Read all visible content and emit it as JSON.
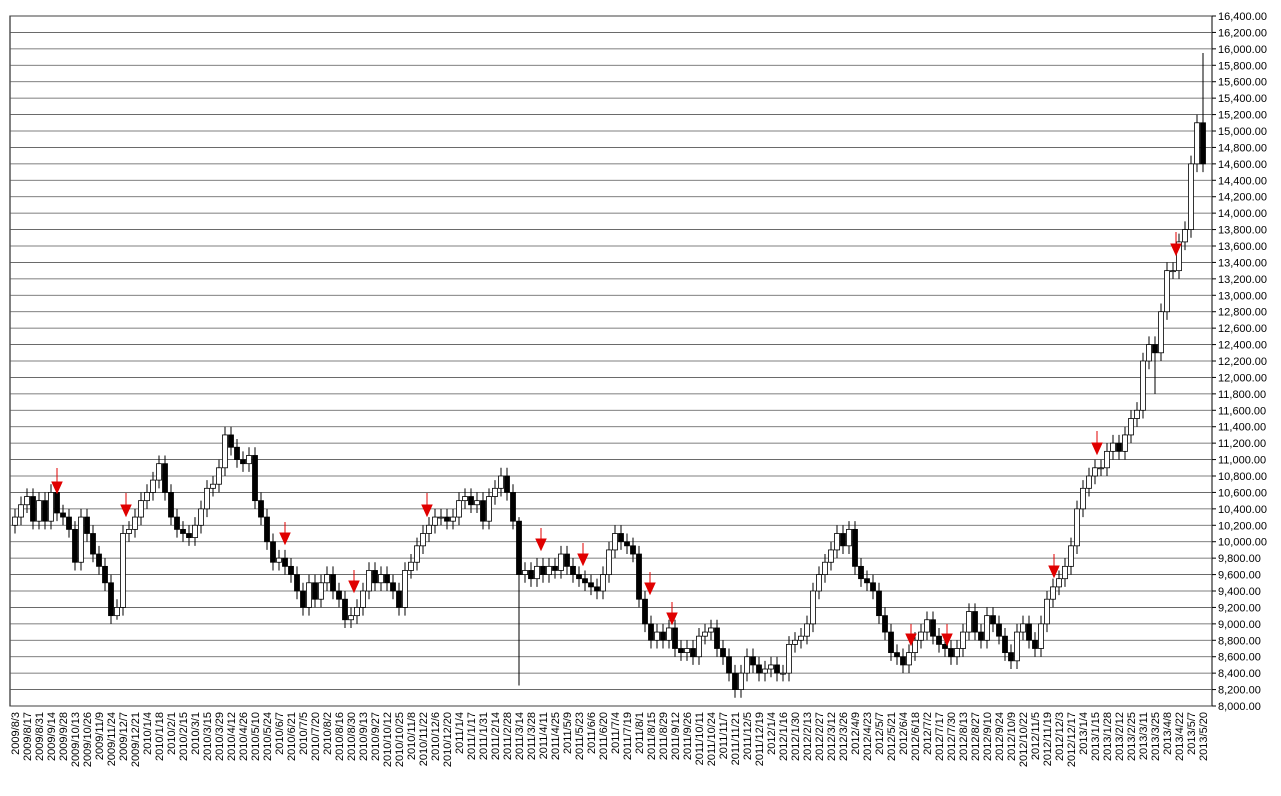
{
  "chart_data": {
    "type": "candlestick",
    "up_color": "#ffffff",
    "down_color": "#000000",
    "grid": true,
    "ylim": [
      8000,
      16400
    ],
    "yticks": [
      {
        "value": 8000,
        "label": "8,000.00"
      },
      {
        "value": 8200,
        "label": "8,200.00"
      },
      {
        "value": 8400,
        "label": "8,400.00"
      },
      {
        "value": 8600,
        "label": "8,600.00"
      },
      {
        "value": 8800,
        "label": "8,800.00"
      },
      {
        "value": 9000,
        "label": "9,000.00"
      },
      {
        "value": 9200,
        "label": "9,200.00"
      },
      {
        "value": 9400,
        "label": "9,400.00"
      },
      {
        "value": 9600,
        "label": "9,600.00"
      },
      {
        "value": 9800,
        "label": "9,800.00"
      },
      {
        "value": 10000,
        "label": "10,000.00"
      },
      {
        "value": 10200,
        "label": "10,200.00"
      },
      {
        "value": 10400,
        "label": "10,400.00"
      },
      {
        "value": 10600,
        "label": "10,600.00"
      },
      {
        "value": 10800,
        "label": "10,800.00"
      },
      {
        "value": 11000,
        "label": "11,000.00"
      },
      {
        "value": 11200,
        "label": "11,200.00"
      },
      {
        "value": 11400,
        "label": "11,400.00"
      },
      {
        "value": 11600,
        "label": "11,600.00"
      },
      {
        "value": 11800,
        "label": "11,800.00"
      },
      {
        "value": 12000,
        "label": "12,000.00"
      },
      {
        "value": 12200,
        "label": "12,200.00"
      },
      {
        "value": 12400,
        "label": "12,400.00"
      },
      {
        "value": 12600,
        "label": "12,600.00"
      },
      {
        "value": 12800,
        "label": "12,800.00"
      },
      {
        "value": 13000,
        "label": "13,000.00"
      },
      {
        "value": 13200,
        "label": "13,200.00"
      },
      {
        "value": 13400,
        "label": "13,400.00"
      },
      {
        "value": 13600,
        "label": "13,600.00"
      },
      {
        "value": 13800,
        "label": "13,800.00"
      },
      {
        "value": 14000,
        "label": "14,000.00"
      },
      {
        "value": 14200,
        "label": "14,200.00"
      },
      {
        "value": 14400,
        "label": "14,400.00"
      },
      {
        "value": 14600,
        "label": "14,600.00"
      },
      {
        "value": 14800,
        "label": "14,800.00"
      },
      {
        "value": 15000,
        "label": "15,000.00"
      },
      {
        "value": 15200,
        "label": "15,200.00"
      },
      {
        "value": 15400,
        "label": "15,400.00"
      },
      {
        "value": 15600,
        "label": "15,600.00"
      },
      {
        "value": 15800,
        "label": "15,800.00"
      },
      {
        "value": 16000,
        "label": "16,000.00"
      },
      {
        "value": 16200,
        "label": "16,200.00"
      },
      {
        "value": 16400,
        "label": "16,400.00"
      }
    ],
    "categories": [
      "2009/8/3",
      null,
      "2009/8/17",
      null,
      "2009/8/31",
      null,
      "2009/9/14",
      null,
      "2009/9/28",
      null,
      "2009/10/13",
      null,
      "2009/10/26",
      null,
      "2009/11/9",
      null,
      "2009/11/24",
      null,
      "2009/12/7",
      null,
      "2009/12/21",
      null,
      "2010/1/4",
      null,
      "2010/1/18",
      null,
      "2010/2/1",
      null,
      "2010/2/15",
      null,
      "2010/3/1",
      null,
      "2010/3/15",
      null,
      "2010/3/29",
      null,
      "2010/4/12",
      null,
      "2010/4/26",
      null,
      "2010/5/10",
      null,
      "2010/5/24",
      null,
      "2010/6/7",
      null,
      "2010/6/21",
      null,
      "2010/7/5",
      null,
      "2010/7/20",
      null,
      "2010/8/2",
      null,
      "2010/8/16",
      null,
      "2010/8/30",
      null,
      "2010/9/13",
      null,
      "2010/9/27",
      null,
      "2010/10/12",
      null,
      "2010/10/25",
      null,
      "2010/11/8",
      null,
      "2010/11/22",
      null,
      "2010/12/6",
      null,
      "2010/12/20",
      null,
      "2011/1/4",
      null,
      "2011/1/17",
      null,
      "2011/1/31",
      null,
      "2011/2/14",
      null,
      "2011/2/28",
      null,
      "2011/3/14",
      null,
      "2011/3/28",
      null,
      "2011/4/11",
      null,
      "2011/4/25",
      null,
      "2011/5/9",
      null,
      "2011/5/23",
      null,
      "2011/6/6",
      null,
      "2011/6/20",
      null,
      "2011/7/4",
      null,
      "2011/7/19",
      null,
      "2011/8/1",
      null,
      "2011/8/15",
      null,
      "2011/8/29",
      null,
      "2011/9/12",
      null,
      "2011/9/26",
      null,
      "2011/10/11",
      null,
      "2011/10/24",
      null,
      "2011/11/7",
      null,
      "2011/11/21",
      null,
      "2011/12/5",
      null,
      "2011/12/19",
      null,
      "2012/1/4",
      null,
      "2012/1/16",
      null,
      "2012/1/30",
      null,
      "2012/2/13",
      null,
      "2012/2/27",
      null,
      "2012/3/12",
      null,
      "2012/3/26",
      null,
      "2012/4/9",
      null,
      "2012/4/23",
      null,
      "2012/5/7",
      null,
      "2012/5/21",
      null,
      "2012/6/4",
      null,
      "2012/6/18",
      null,
      "2012/7/2",
      null,
      "2012/7/17",
      null,
      "2012/7/30",
      null,
      "2012/8/13",
      null,
      "2012/8/27",
      null,
      "2012/9/10",
      null,
      "2012/9/24",
      null,
      "2012/10/9",
      null,
      "2012/10/22",
      null,
      "2012/11/5",
      null,
      "2012/11/19",
      null,
      "2012/12/3",
      null,
      "2012/12/17",
      null,
      "2013/1/4",
      null,
      "2013/1/15",
      null,
      "2013/1/28",
      null,
      "2013/2/12",
      null,
      "2013/2/25",
      null,
      "2013/3/11",
      null,
      "2013/3/25",
      null,
      "2013/4/8",
      null,
      "2013/4/22",
      null,
      "2013/5/7",
      null,
      "2013/5/20"
    ],
    "open": [
      10200,
      10300,
      10450,
      10550,
      10250,
      10500,
      10250,
      10600,
      10350,
      10300,
      10150,
      9750,
      10300,
      10100,
      9850,
      9700,
      9500,
      9100,
      9200,
      10100,
      10150,
      10300,
      10500,
      10600,
      10750,
      10950,
      10600,
      10300,
      10150,
      10100,
      10050,
      10200,
      10400,
      10650,
      10700,
      10900,
      11300,
      11150,
      11000,
      10950,
      11050,
      10500,
      10300,
      10000,
      9750,
      9800,
      9700,
      9600,
      9400,
      9200,
      9500,
      9300,
      9500,
      9600,
      9400,
      9300,
      9050,
      9100,
      9200,
      9400,
      9650,
      9500,
      9600,
      9500,
      9400,
      9200,
      9650,
      9750,
      9950,
      10100,
      10200,
      10300,
      10300,
      10250,
      10300,
      10500,
      10550,
      10450,
      10500,
      10250,
      10550,
      10650,
      10800,
      10600,
      10250,
      9600,
      9650,
      9550,
      9700,
      9600,
      9700,
      9650,
      9850,
      9700,
      9600,
      9550,
      9500,
      9450,
      9400,
      9600,
      9900,
      10100,
      10000,
      9950,
      9850,
      9300,
      9000,
      8800,
      8900,
      8800,
      8950,
      8700,
      8650,
      8700,
      8600,
      8850,
      8900,
      8950,
      8700,
      8600,
      8400,
      8200,
      8400,
      8600,
      8500,
      8400,
      8450,
      8500,
      8400,
      8400,
      8750,
      8800,
      8850,
      9000,
      9400,
      9600,
      9750,
      9900,
      10100,
      9950,
      10150,
      9700,
      9550,
      9500,
      9400,
      9100,
      8900,
      8650,
      8600,
      8500,
      8650,
      8800,
      8900,
      9050,
      8850,
      8750,
      8700,
      8600,
      8700,
      8900,
      9150,
      8900,
      8800,
      9100,
      9000,
      8850,
      8650,
      8550,
      8900,
      9000,
      8800,
      8700,
      9000,
      9300,
      9450,
      9550,
      9700,
      9950,
      10400,
      10650,
      10800,
      10900,
      10900,
      11100,
      11200,
      11100,
      11300,
      11500,
      11600,
      12200,
      12400,
      12300,
      12800,
      13300,
      13300,
      13650,
      13800,
      14600,
      15100
    ],
    "high": [
      10400,
      10550,
      10650,
      10650,
      10600,
      10600,
      10700,
      10700,
      10450,
      10400,
      10250,
      10400,
      10400,
      10200,
      9950,
      9800,
      9600,
      9300,
      10200,
      10250,
      10400,
      10600,
      10700,
      10850,
      11050,
      11050,
      10700,
      10400,
      10250,
      10200,
      10300,
      10500,
      10750,
      10800,
      11000,
      11400,
      11400,
      11250,
      11100,
      11150,
      11150,
      10600,
      10400,
      10100,
      9900,
      9900,
      9800,
      9700,
      9500,
      9600,
      9600,
      9600,
      9700,
      9700,
      9500,
      9400,
      9200,
      9300,
      9500,
      9750,
      9750,
      9700,
      9700,
      9600,
      9500,
      9750,
      9850,
      10050,
      10200,
      10300,
      10400,
      10400,
      10400,
      10400,
      10600,
      10650,
      10650,
      10600,
      10600,
      10650,
      10750,
      10900,
      10900,
      10700,
      10300,
      9750,
      9750,
      9800,
      9800,
      9800,
      9800,
      9950,
      9950,
      9800,
      9700,
      9650,
      9600,
      9550,
      9700,
      10000,
      10200,
      10200,
      10100,
      10050,
      9950,
      9400,
      9100,
      9000,
      9000,
      9050,
      9050,
      8800,
      8800,
      8800,
      8950,
      9000,
      9050,
      9050,
      8800,
      8700,
      8500,
      8500,
      8700,
      8700,
      8600,
      8550,
      8600,
      8600,
      8500,
      8850,
      8900,
      8950,
      9100,
      9500,
      9700,
      9850,
      10000,
      10200,
      10200,
      10250,
      10250,
      9800,
      9650,
      9600,
      9500,
      9200,
      9000,
      8750,
      8700,
      8750,
      8900,
      9000,
      9150,
      9150,
      8950,
      8850,
      8800,
      8800,
      9000,
      9250,
      9250,
      9000,
      9200,
      9200,
      9100,
      8950,
      8750,
      9000,
      9100,
      9100,
      8900,
      9100,
      9400,
      9550,
      9650,
      9800,
      10050,
      10500,
      10750,
      10900,
      11000,
      11000,
      11200,
      11300,
      11300,
      11400,
      11600,
      11700,
      12300,
      12500,
      12500,
      12900,
      13400,
      13400,
      13750,
      13900,
      14700,
      15200,
      15950
    ],
    "low": [
      10100,
      10200,
      10350,
      10150,
      10150,
      10150,
      10150,
      10250,
      10200,
      10050,
      9650,
      9650,
      10000,
      9750,
      9600,
      9400,
      9000,
      9050,
      9100,
      10000,
      10050,
      10200,
      10400,
      10500,
      10650,
      10500,
      10200,
      10050,
      10000,
      9950,
      9950,
      10100,
      10300,
      10550,
      10600,
      10800,
      11050,
      10900,
      10850,
      10850,
      10400,
      10200,
      9900,
      9650,
      9650,
      9600,
      9500,
      9300,
      9100,
      9100,
      9200,
      9200,
      9400,
      9300,
      9200,
      8950,
      8950,
      9000,
      9100,
      9300,
      9400,
      9400,
      9400,
      9300,
      9100,
      9100,
      9550,
      9650,
      9850,
      10000,
      10100,
      10200,
      10150,
      10150,
      10200,
      10400,
      10350,
      10350,
      10150,
      10150,
      10450,
      10550,
      10500,
      10150,
      8250,
      9500,
      9450,
      9450,
      9500,
      9500,
      9550,
      9550,
      9600,
      9500,
      9450,
      9400,
      9350,
      9300,
      9300,
      9500,
      9800,
      9900,
      9850,
      9750,
      9200,
      8900,
      8700,
      8700,
      8700,
      8700,
      8600,
      8550,
      8550,
      8500,
      8500,
      8750,
      8800,
      8600,
      8500,
      8300,
      8100,
      8100,
      8300,
      8400,
      8300,
      8300,
      8350,
      8300,
      8300,
      8300,
      8650,
      8700,
      8750,
      8900,
      9300,
      9500,
      9650,
      9800,
      9850,
      9850,
      9600,
      9450,
      9400,
      9300,
      9000,
      8800,
      8550,
      8500,
      8400,
      8400,
      8550,
      8700,
      8800,
      8750,
      8650,
      8600,
      8500,
      8500,
      8600,
      8800,
      8800,
      8700,
      8700,
      8900,
      8750,
      8550,
      8450,
      8450,
      8800,
      8700,
      8600,
      8600,
      8900,
      9200,
      9350,
      9450,
      9600,
      9850,
      10300,
      10550,
      10700,
      10800,
      10800,
      11000,
      11000,
      11000,
      11200,
      11400,
      11500,
      12100,
      11800,
      12200,
      12700,
      13200,
      13200,
      13550,
      13700,
      14500,
      14500
    ],
    "close": [
      10300,
      10450,
      10550,
      10250,
      10500,
      10250,
      10600,
      10350,
      10300,
      10150,
      9750,
      10300,
      10100,
      9850,
      9700,
      9500,
      9100,
      9200,
      10100,
      10150,
      10300,
      10500,
      10600,
      10750,
      10950,
      10600,
      10300,
      10150,
      10100,
      10050,
      10200,
      10400,
      10650,
      10700,
      10900,
      11300,
      11150,
      11000,
      10950,
      11050,
      10500,
      10300,
      10000,
      9750,
      9800,
      9700,
      9600,
      9400,
      9200,
      9500,
      9300,
      9500,
      9600,
      9400,
      9300,
      9050,
      9100,
      9200,
      9400,
      9650,
      9500,
      9600,
      9500,
      9400,
      9200,
      9650,
      9750,
      9950,
      10100,
      10200,
      10300,
      10300,
      10250,
      10300,
      10500,
      10550,
      10450,
      10500,
      10250,
      10550,
      10650,
      10800,
      10600,
      10250,
      9600,
      9650,
      9550,
      9700,
      9600,
      9700,
      9650,
      9850,
      9700,
      9600,
      9550,
      9500,
      9450,
      9400,
      9600,
      9900,
      10100,
      10000,
      9950,
      9850,
      9300,
      9000,
      8800,
      8900,
      8800,
      8950,
      8700,
      8650,
      8700,
      8600,
      8850,
      8900,
      8950,
      8700,
      8600,
      8400,
      8200,
      8400,
      8600,
      8500,
      8400,
      8450,
      8500,
      8400,
      8400,
      8750,
      8800,
      8850,
      9000,
      9400,
      9600,
      9750,
      9900,
      10100,
      9950,
      10150,
      9700,
      9550,
      9500,
      9400,
      9100,
      8900,
      8650,
      8600,
      8500,
      8650,
      8800,
      8900,
      9050,
      8850,
      8750,
      8700,
      8600,
      8700,
      8900,
      9150,
      8900,
      8800,
      9100,
      9000,
      8850,
      8650,
      8550,
      8900,
      9000,
      8800,
      8700,
      9000,
      9300,
      9450,
      9550,
      9700,
      9950,
      10400,
      10650,
      10800,
      10900,
      10900,
      11100,
      11200,
      11100,
      11300,
      11500,
      11600,
      12200,
      12400,
      12300,
      12800,
      13300,
      13300,
      13650,
      13800,
      14600,
      15100,
      14600
    ]
  }
}
